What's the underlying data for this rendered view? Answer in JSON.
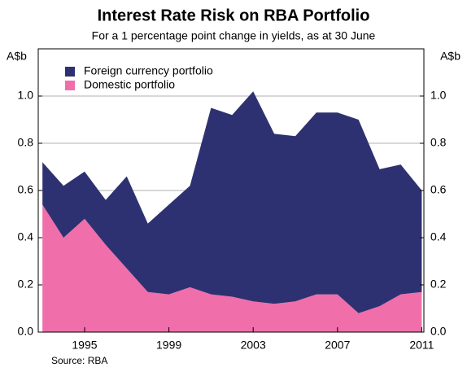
{
  "chart_data": {
    "type": "stacked_area",
    "title": "Interest Rate Risk on RBA Portfolio",
    "subtitle": "For a 1 percentage point change in yields, as at 30 June",
    "y_unit_label": "A$b",
    "source": "Source: RBA",
    "x": [
      1993,
      1994,
      1995,
      1996,
      1997,
      1998,
      1999,
      2000,
      2001,
      2002,
      2003,
      2004,
      2005,
      2006,
      2007,
      2008,
      2009,
      2010,
      2011
    ],
    "series": [
      {
        "name": "Foreign currency portfolio",
        "color": "#2e3171",
        "values": [
          0.18,
          0.22,
          0.2,
          0.19,
          0.39,
          0.29,
          0.38,
          0.43,
          0.79,
          0.77,
          0.89,
          0.72,
          0.7,
          0.77,
          0.77,
          0.82,
          0.58,
          0.55,
          0.43
        ]
      },
      {
        "name": "Domestic portfolio",
        "color": "#f06eaa",
        "values": [
          0.54,
          0.4,
          0.48,
          0.37,
          0.27,
          0.17,
          0.16,
          0.19,
          0.16,
          0.15,
          0.13,
          0.12,
          0.13,
          0.16,
          0.16,
          0.08,
          0.11,
          0.16,
          0.17
        ]
      }
    ],
    "xlim": [
      1992.8,
      2011.1
    ],
    "xticks": [
      1995,
      1999,
      2003,
      2007,
      2011
    ],
    "ylim": [
      0,
      1.2
    ],
    "yticks": [
      {
        "value": 0,
        "label": "0.0"
      },
      0.2,
      0.4,
      0.6,
      0.8,
      {
        "value": 1,
        "label": "1.0"
      }
    ],
    "grid": true
  }
}
